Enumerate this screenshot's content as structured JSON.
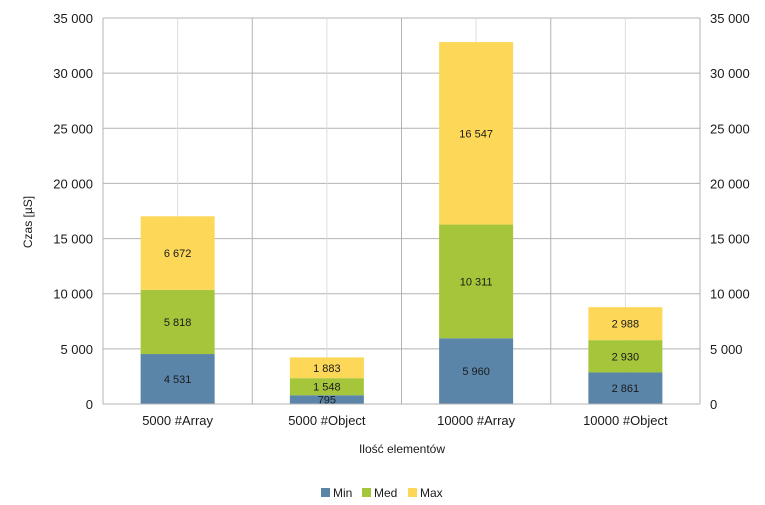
{
  "chart_data": {
    "type": "bar",
    "stacked": true,
    "categories": [
      "5000 #Array",
      "5000 #Object",
      "10000 #Array",
      "10000 #Object"
    ],
    "series": [
      {
        "name": "Min",
        "color": "#5a85a9",
        "values": [
          4531,
          795,
          5960,
          2861
        ],
        "labels": [
          "4 531",
          "795",
          "5 960",
          "2 861"
        ]
      },
      {
        "name": "Med",
        "color": "#a5c63b",
        "values": [
          5818,
          1548,
          10311,
          2930
        ],
        "labels": [
          "5 818",
          "1 548",
          "10 311",
          "2 930"
        ]
      },
      {
        "name": "Max",
        "color": "#fdd858",
        "values": [
          6672,
          1883,
          16547,
          2988
        ],
        "labels": [
          "6 672",
          "1 883",
          "16 547",
          "2 988"
        ]
      }
    ],
    "ylim": [
      0,
      35000
    ],
    "yticks": [
      0,
      5000,
      10000,
      15000,
      20000,
      25000,
      30000,
      35000
    ],
    "ytick_labels": [
      "0",
      "5 000",
      "10 000",
      "15 000",
      "20 000",
      "25 000",
      "30 000",
      "35 000"
    ],
    "xlabel": "Ilość elementów",
    "ylabel": "Czas [µS]",
    "grid": true,
    "legend_position": "bottom",
    "secondary_y_axis": true
  }
}
